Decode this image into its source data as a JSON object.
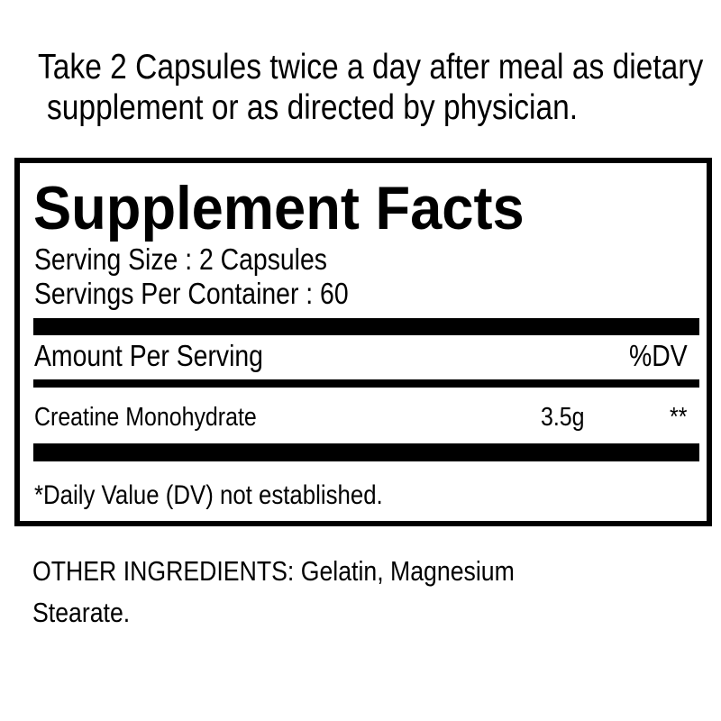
{
  "directions": {
    "line1": "Take 2 Capsules twice a day after meal as dietary",
    "line2": "supplement or as directed by physician."
  },
  "facts": {
    "title": "Supplement Facts",
    "serving_size": "Serving Size : 2 Capsules",
    "servings_per_container": "Servings Per Container : 60",
    "amount_header": "Amount Per Serving",
    "dv_header": "%DV",
    "ingredients": [
      {
        "name": "Creatine Monohydrate",
        "amount": "3.5g",
        "dv": "**"
      }
    ],
    "footnote": "*Daily Value (DV) not established."
  },
  "other_ingredients": {
    "line1": "OTHER INGREDIENTS: Gelatin, Magnesium",
    "line2": "Stearate."
  }
}
